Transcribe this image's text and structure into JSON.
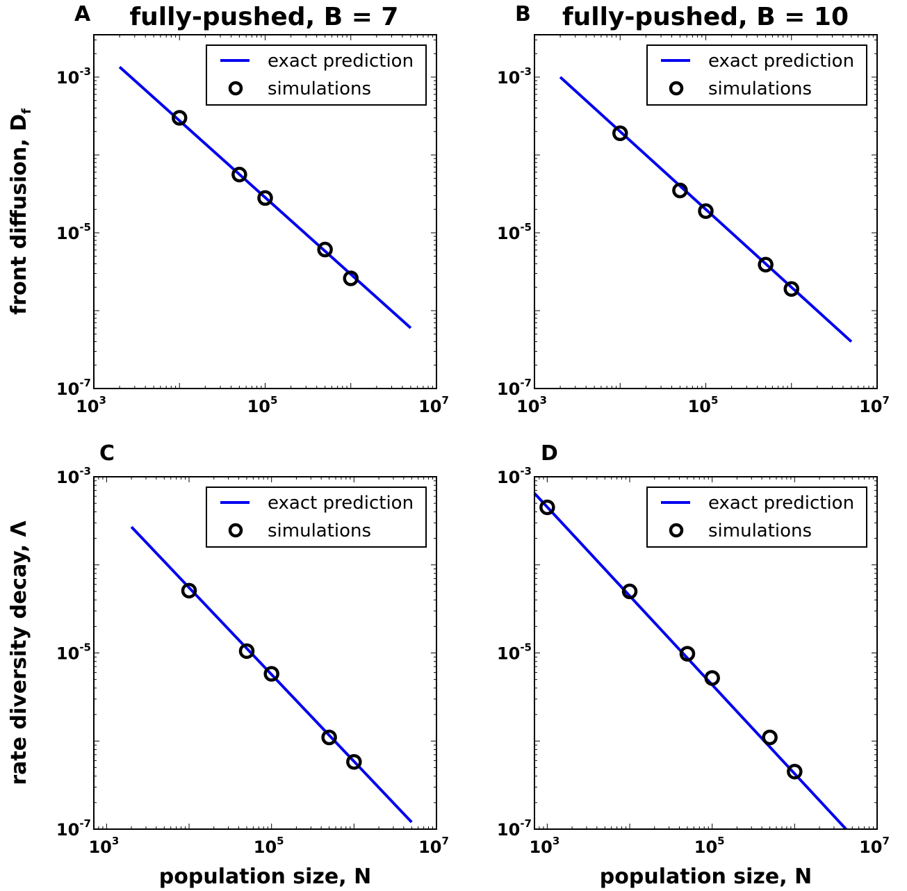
{
  "chart_data": [
    {
      "panel": "A",
      "type": "line",
      "title": "fully-pushed, B = 7",
      "ylabel": "front diffusion, D",
      "ylabel_sub": "f",
      "xlabel": "",
      "x_scale": "log",
      "y_scale": "log",
      "xlim": [
        1000,
        10000000
      ],
      "ylim": [
        1e-07,
        0.0035
      ],
      "xticks": [
        {
          "base": "10",
          "exp": "3"
        },
        {
          "base": "10",
          "exp": "5"
        },
        {
          "base": "10",
          "exp": "7"
        }
      ],
      "yticks": [
        {
          "base": "10",
          "exp": "-3"
        },
        {
          "base": "10",
          "exp": "-5"
        },
        {
          "base": "10",
          "exp": "-7"
        }
      ],
      "legend": {
        "position": "top-right",
        "line_label": "exact prediction",
        "marker_label": "simulations"
      },
      "series": [
        {
          "name": "exact prediction",
          "kind": "line",
          "color": "#0000ee",
          "x": [
            2000,
            5000000
          ],
          "y": [
            0.00135,
            6e-07
          ]
        },
        {
          "name": "simulations",
          "kind": "scatter",
          "marker": "open-circle",
          "x": [
            10000,
            50000,
            100000,
            500000,
            1000000
          ],
          "y": [
            0.0003,
            5.6e-05,
            2.8e-05,
            6.1e-06,
            2.6e-06
          ]
        }
      ]
    },
    {
      "panel": "B",
      "type": "line",
      "title": "fully-pushed, B = 10",
      "ylabel": "",
      "xlabel": "",
      "x_scale": "log",
      "y_scale": "log",
      "xlim": [
        1000,
        10000000
      ],
      "ylim": [
        1e-07,
        0.0035
      ],
      "xticks": [
        {
          "base": "10",
          "exp": "3"
        },
        {
          "base": "10",
          "exp": "5"
        },
        {
          "base": "10",
          "exp": "7"
        }
      ],
      "yticks": [
        {
          "base": "10",
          "exp": "-3"
        },
        {
          "base": "10",
          "exp": "-5"
        },
        {
          "base": "10",
          "exp": "-7"
        }
      ],
      "legend": {
        "position": "top-right",
        "line_label": "exact prediction",
        "marker_label": "simulations"
      },
      "series": [
        {
          "name": "exact prediction",
          "kind": "line",
          "color": "#0000ee",
          "x": [
            2000,
            5000000
          ],
          "y": [
            0.001,
            4e-07
          ]
        },
        {
          "name": "simulations",
          "kind": "scatter",
          "marker": "open-circle",
          "x": [
            10000,
            50000,
            100000,
            500000,
            1000000
          ],
          "y": [
            0.00019,
            3.5e-05,
            1.9e-05,
            3.9e-06,
            1.9e-06
          ]
        }
      ]
    },
    {
      "panel": "C",
      "type": "line",
      "title": "",
      "ylabel": "rate diversity decay, Λ",
      "xlabel": "population size, N",
      "x_scale": "log",
      "y_scale": "log",
      "xlim": [
        700,
        10000000
      ],
      "ylim": [
        1e-07,
        0.001
      ],
      "xticks": [
        {
          "base": "10",
          "exp": "3"
        },
        {
          "base": "10",
          "exp": "5"
        },
        {
          "base": "10",
          "exp": "7"
        }
      ],
      "yticks": [
        {
          "base": "10",
          "exp": "-3"
        },
        {
          "base": "10",
          "exp": "-5"
        },
        {
          "base": "10",
          "exp": "-7"
        }
      ],
      "legend": {
        "position": "top-right",
        "line_label": "exact prediction",
        "marker_label": "simulations"
      },
      "series": [
        {
          "name": "exact prediction",
          "kind": "line",
          "color": "#0000ee",
          "x": [
            2000,
            5000000
          ],
          "y": [
            0.00027,
            1.2e-07
          ]
        },
        {
          "name": "simulations",
          "kind": "scatter",
          "marker": "open-circle",
          "x": [
            10000,
            50000,
            100000,
            500000,
            1000000
          ],
          "y": [
            5.1e-05,
            1.05e-05,
            5.8e-06,
            1.1e-06,
            5.8e-07
          ]
        }
      ]
    },
    {
      "panel": "D",
      "type": "line",
      "title": "",
      "ylabel": "",
      "xlabel": "population size, N",
      "x_scale": "log",
      "y_scale": "log",
      "xlim": [
        700,
        10000000
      ],
      "ylim": [
        1e-07,
        0.001
      ],
      "xticks": [
        {
          "base": "10",
          "exp": "3"
        },
        {
          "base": "10",
          "exp": "5"
        },
        {
          "base": "10",
          "exp": "7"
        }
      ],
      "yticks": [
        {
          "base": "10",
          "exp": "-3"
        },
        {
          "base": "10",
          "exp": "-5"
        },
        {
          "base": "10",
          "exp": "-7"
        }
      ],
      "legend": {
        "position": "top-right",
        "line_label": "exact prediction",
        "marker_label": "simulations"
      },
      "series": [
        {
          "name": "exact prediction",
          "kind": "line",
          "color": "#0000ee",
          "x": [
            700,
            4200000
          ],
          "y": [
            0.00065,
            1e-07
          ]
        },
        {
          "name": "simulations",
          "kind": "scatter",
          "marker": "open-circle",
          "x": [
            1000,
            10000,
            50000,
            100000,
            500000,
            1000000
          ],
          "y": [
            0.00045,
            5e-05,
            9.8e-06,
            5.2e-06,
            1.1e-06,
            4.5e-07
          ]
        }
      ]
    }
  ]
}
